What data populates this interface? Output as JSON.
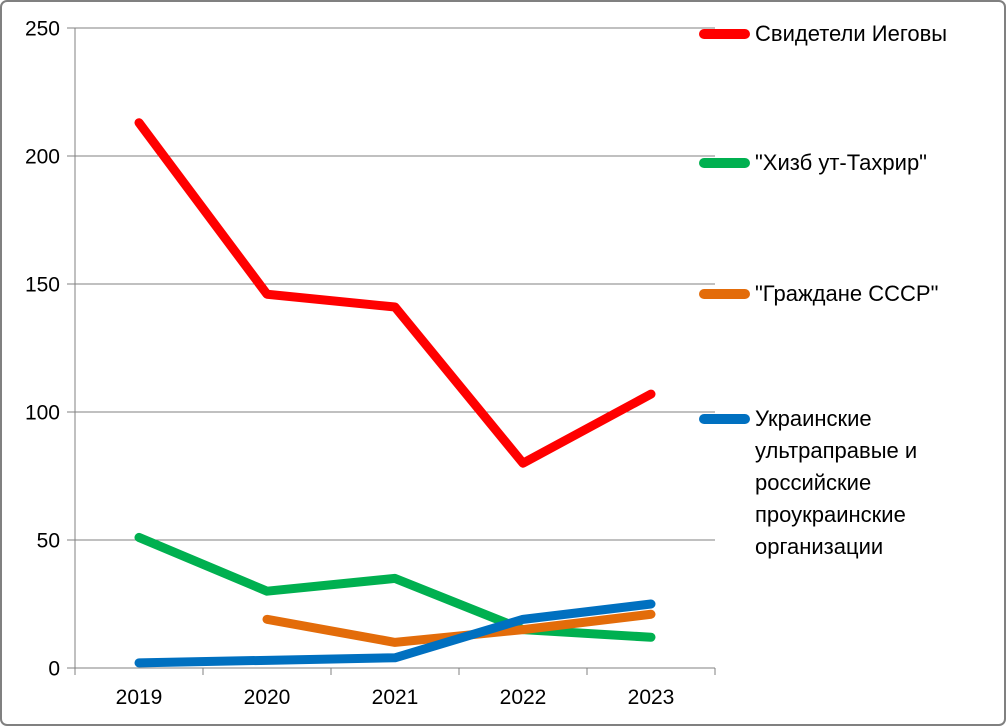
{
  "chart_data": {
    "type": "line",
    "title": "",
    "xlabel": "",
    "ylabel": "",
    "categories": [
      "2019",
      "2020",
      "2021",
      "2022",
      "2023"
    ],
    "series": [
      {
        "name": "Свидетели Иеговы",
        "color": "#FF0000",
        "values": [
          213,
          146,
          141,
          80,
          107
        ]
      },
      {
        "name": "\"Хизб ут-Тахрир\"",
        "color": "#00B050",
        "values": [
          51,
          30,
          35,
          15,
          12
        ]
      },
      {
        "name": "\"Граждане СССР\"",
        "color": "#E36C0A",
        "values": [
          null,
          19,
          10,
          15,
          21
        ]
      },
      {
        "name": "Украинские ультраправые и российские проукраинские организации",
        "color": "#0070C0",
        "values": [
          2,
          3,
          4,
          19,
          25
        ]
      }
    ],
    "ylim": [
      0,
      250
    ],
    "yticks": [
      0,
      50,
      100,
      150,
      200,
      250
    ],
    "grid": true,
    "gridline_color": "#808080",
    "line_width": 9,
    "legend_position": "right"
  }
}
